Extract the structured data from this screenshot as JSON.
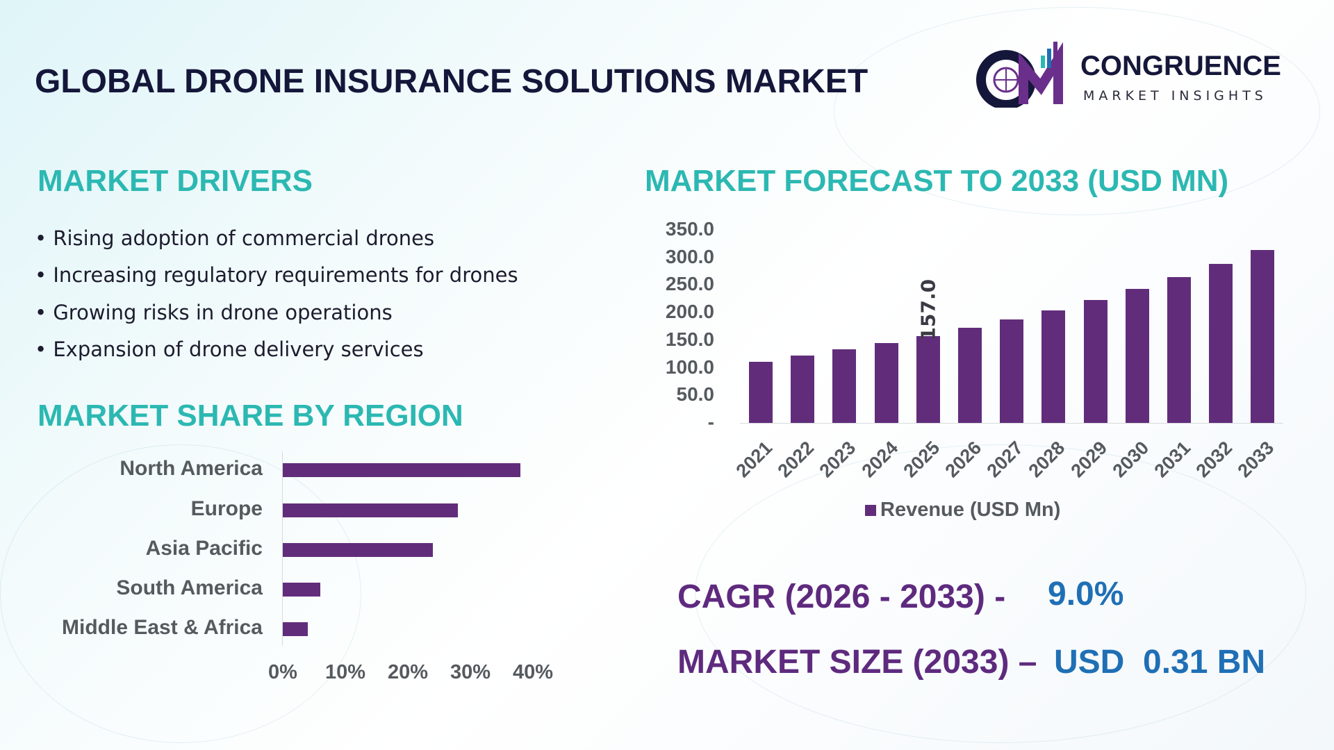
{
  "title": "GLOBAL DRONE INSURANCE SOLUTIONS MARKET",
  "logo": {
    "name": "CONGRUENCE",
    "tagline": "MARKET INSIGHTS",
    "mark": "CM"
  },
  "drivers": {
    "heading": "MARKET DRIVERS",
    "items": [
      "Rising adoption of commercial drones",
      "Increasing regulatory requirements for drones",
      "Growing risks in drone operations",
      "Expansion of drone delivery services"
    ]
  },
  "colors": {
    "bar": "#612d7b",
    "heading": "#2cb8b2",
    "kpi_label": "#5e2a7e",
    "kpi_value": "#1f6fb5"
  },
  "chart_data": [
    {
      "type": "bar",
      "orientation": "horizontal",
      "title": "MARKET SHARE BY REGION",
      "categories": [
        "North America",
        "Europe",
        "Asia Pacific",
        "South America",
        "Middle East & Africa"
      ],
      "values": [
        38,
        28,
        24,
        6,
        4
      ],
      "xlim": [
        0,
        40
      ],
      "xticks": [
        "0%",
        "10%",
        "20%",
        "30%",
        "40%"
      ],
      "grid": false
    },
    {
      "type": "bar",
      "title": "MARKET FORECAST TO 2033 (USD MN)",
      "categories": [
        "2021",
        "2022",
        "2023",
        "2024",
        "2025",
        "2026",
        "2027",
        "2028",
        "2029",
        "2030",
        "2031",
        "2032",
        "2033"
      ],
      "series": [
        {
          "name": "Revenue (USD Mn)",
          "values": [
            111.4,
            121.5,
            132.9,
            144.3,
            157.0,
            172.2,
            187.3,
            203.8,
            222.8,
            243.0,
            264.6,
            288.6,
            313.9
          ]
        }
      ],
      "data_labels": {
        "2025": "157.0"
      },
      "ylim": [
        0,
        350
      ],
      "yticks": [
        "-",
        "50.0",
        "100.0",
        "150.0",
        "200.0",
        "250.0",
        "300.0",
        "350.0"
      ],
      "legend": "bottom",
      "grid": false
    }
  ],
  "kpis": {
    "cagr_label": "CAGR (2026 - 2033) -",
    "cagr_value": "9.0%",
    "size_label": "MARKET SIZE (2033) –",
    "size_value": "USD  0.31 BN"
  }
}
